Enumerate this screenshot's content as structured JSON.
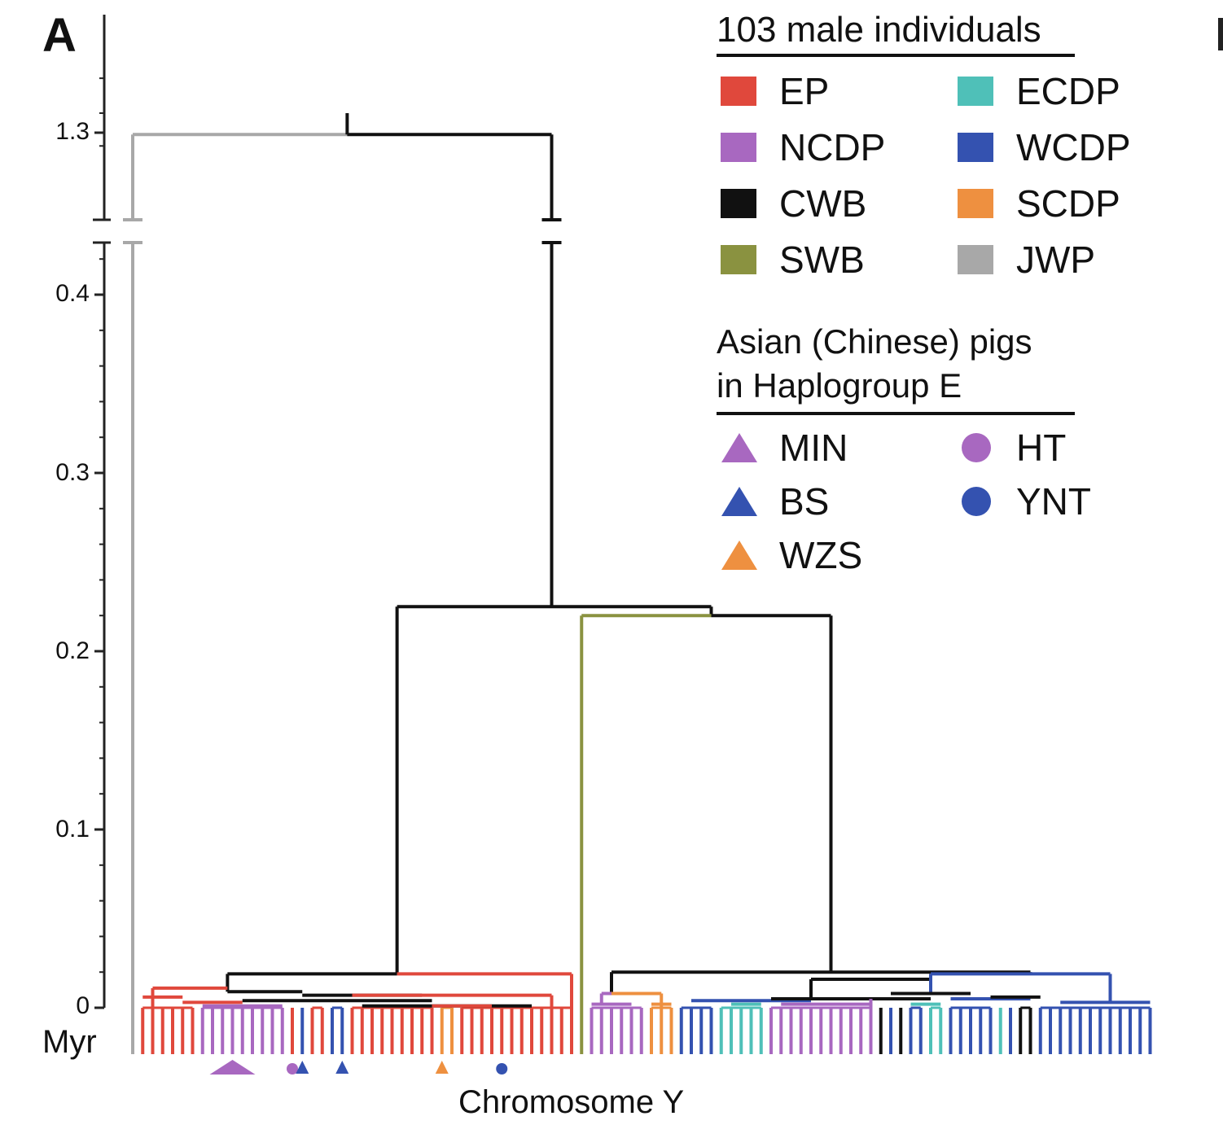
{
  "panel_label": "A",
  "chart_data": {
    "type": "dendrogram",
    "xlabel": "Chromosome Y",
    "ylabel": "Myr",
    "y_axis": {
      "ticks": [
        "0",
        "0.1",
        "0.2",
        "0.3",
        "0.4",
        "1.3"
      ],
      "broken_between": [
        0.45,
        1.25
      ],
      "ylim": [
        0,
        1.35
      ]
    },
    "legend_title": "103 male individuals",
    "groups": [
      {
        "name": "EP",
        "color": "#e0483c"
      },
      {
        "name": "ECDP",
        "color": "#4fc0b8"
      },
      {
        "name": "NCDP",
        "color": "#a868c0"
      },
      {
        "name": "WCDP",
        "color": "#3452b0"
      },
      {
        "name": "CWB",
        "color": "#111111"
      },
      {
        "name": "SCDP",
        "color": "#ee9040"
      },
      {
        "name": "SWB",
        "color": "#8a9240"
      },
      {
        "name": "JWP",
        "color": "#a8a8a8"
      }
    ],
    "haplogroup_title": [
      "Asian (Chinese) pigs",
      "in Haplogroup E"
    ],
    "haplogroup_markers": [
      {
        "name": "MIN",
        "shape": "triangle",
        "color": "#a868c0"
      },
      {
        "name": "HT",
        "shape": "circle",
        "color": "#a868c0"
      },
      {
        "name": "BS",
        "shape": "triangle",
        "color": "#3452b0"
      },
      {
        "name": "YNT",
        "shape": "circle",
        "color": "#3452b0"
      },
      {
        "name": "WZS",
        "shape": "triangle",
        "color": "#ee9040"
      }
    ],
    "leaf_groups": [
      "JWP",
      "EP",
      "EP",
      "EP",
      "EP",
      "EP",
      "EP",
      "NCDP",
      "NCDP",
      "NCDP",
      "NCDP",
      "NCDP",
      "NCDP",
      "NCDP",
      "NCDP",
      "NCDP",
      "EP",
      "WCDP",
      "EP",
      "EP",
      "WCDP",
      "WCDP",
      "EP",
      "EP",
      "EP",
      "EP",
      "EP",
      "EP",
      "EP",
      "EP",
      "EP",
      "SCDP",
      "SCDP",
      "EP",
      "EP",
      "EP",
      "EP",
      "EP",
      "EP",
      "EP",
      "EP",
      "EP",
      "EP",
      "EP",
      "EP",
      "SWB",
      "NCDP",
      "NCDP",
      "NCDP",
      "NCDP",
      "NCDP",
      "NCDP",
      "SCDP",
      "SCDP",
      "SCDP",
      "WCDP",
      "WCDP",
      "WCDP",
      "WCDP",
      "ECDP",
      "ECDP",
      "ECDP",
      "ECDP",
      "ECDP",
      "NCDP",
      "NCDP",
      "NCDP",
      "NCDP",
      "NCDP",
      "NCDP",
      "NCDP",
      "NCDP",
      "NCDP",
      "NCDP",
      "NCDP",
      "CWB",
      "WCDP",
      "CWB",
      "WCDP",
      "WCDP",
      "ECDP",
      "ECDP",
      "WCDP",
      "WCDP",
      "WCDP",
      "WCDP",
      "WCDP",
      "ECDP",
      "WCDP",
      "CWB",
      "CWB",
      "WCDP",
      "WCDP",
      "WCDP",
      "WCDP",
      "WCDP",
      "WCDP",
      "WCDP",
      "WCDP",
      "WCDP",
      "WCDP",
      "WCDP",
      "WCDP"
    ],
    "marker_positions": [
      {
        "marker": "MIN",
        "leaf": 10
      },
      {
        "marker": "HT",
        "leaf": 16
      },
      {
        "marker": "BS",
        "leaf": 17
      },
      {
        "marker": "BS",
        "leaf": 21
      },
      {
        "marker": "WZS",
        "leaf": 31
      },
      {
        "marker": "YNT",
        "leaf": 37
      }
    ],
    "branches": [
      {
        "type": "h",
        "color": "JWP",
        "x0": 0,
        "x1": 21.5,
        "y": 1.33
      },
      {
        "type": "h",
        "color": "CWB",
        "x0": 21.5,
        "x1": 42,
        "y": 1.33
      },
      {
        "type": "v",
        "color": "CWB",
        "x": 21.5,
        "y0": 1.33,
        "y1": 1.35
      },
      {
        "type": "v",
        "color": "JWP",
        "x": 0,
        "y0": 0,
        "y1": 1.33,
        "broken": true
      },
      {
        "type": "v",
        "color": "CWB",
        "x": 42,
        "y0": 0.225,
        "y1": 1.33,
        "broken": true
      },
      {
        "type": "h",
        "color": "CWB",
        "x0": 26.5,
        "x1": 58,
        "y": 0.225
      },
      {
        "type": "v",
        "color": "CWB",
        "x": 26.5,
        "y0": 0.019,
        "y1": 0.225
      },
      {
        "type": "v",
        "color": "CWB",
        "x": 58,
        "y0": 0.22,
        "y1": 0.225
      },
      {
        "type": "h",
        "color": "SWB",
        "x0": 45,
        "x1": 58,
        "y": 0.22
      },
      {
        "type": "h",
        "color": "CWB",
        "x0": 58,
        "x1": 70,
        "y": 0.22
      },
      {
        "type": "v",
        "color": "SWB",
        "x": 45,
        "y0": 0,
        "y1": 0.22
      },
      {
        "type": "v",
        "color": "CWB",
        "x": 70,
        "y0": 0.02,
        "y1": 0.22
      },
      {
        "type": "h",
        "color": "CWB",
        "x0": 9.5,
        "x1": 26.5,
        "y": 0.019
      },
      {
        "type": "h",
        "color": "EP",
        "x0": 26.5,
        "x1": 44,
        "y": 0.019
      },
      {
        "type": "v",
        "color": "CWB",
        "x": 9.5,
        "y0": 0.009,
        "y1": 0.019
      },
      {
        "type": "v",
        "color": "EP",
        "x": 44,
        "y0": 0,
        "y1": 0.019
      },
      {
        "type": "h",
        "color": "EP",
        "x0": 2,
        "x1": 9.5,
        "y": 0.011
      },
      {
        "type": "h",
        "color": "CWB",
        "x0": 9.5,
        "x1": 17,
        "y": 0.009
      },
      {
        "type": "h",
        "color": "CWB",
        "x0": 17,
        "x1": 29,
        "y": 0.007
      },
      {
        "type": "h",
        "color": "EP",
        "x0": 22,
        "x1": 42,
        "y": 0.007
      },
      {
        "type": "v",
        "color": "EP",
        "x": 2,
        "y0": 0,
        "y1": 0.011
      },
      {
        "type": "v",
        "color": "EP",
        "x": 42,
        "y0": 0,
        "y1": 0.007
      },
      {
        "type": "h",
        "color": "EP",
        "x0": 1,
        "x1": 5,
        "y": 0.006
      },
      {
        "type": "h",
        "color": "EP",
        "x0": 5,
        "x1": 11,
        "y": 0.003
      },
      {
        "type": "h",
        "color": "CWB",
        "x0": 11,
        "x1": 30,
        "y": 0.004
      },
      {
        "type": "h",
        "color": "CWB",
        "x0": 23,
        "x1": 40,
        "y": 0.001
      },
      {
        "type": "h",
        "color": "NCDP",
        "x0": 7,
        "x1": 15,
        "y": 0.001
      },
      {
        "type": "h",
        "color": "EP",
        "x0": 30,
        "x1": 36,
        "y": 0.001
      },
      {
        "type": "h",
        "color": "CWB",
        "x0": 48,
        "x1": 70,
        "y": 0.02
      },
      {
        "type": "h",
        "color": "CWB",
        "x0": 70,
        "x1": 90,
        "y": 0.02
      },
      {
        "type": "v",
        "color": "CWB",
        "x": 48,
        "y0": 0.008,
        "y1": 0.02
      },
      {
        "type": "v",
        "color": "CWB",
        "x": 90,
        "y0": 0.019,
        "y1": 0.02
      },
      {
        "type": "h",
        "color": "NCDP",
        "x0": 47,
        "x1": 48,
        "y": 0.008
      },
      {
        "type": "h",
        "color": "SCDP",
        "x0": 48,
        "x1": 53,
        "y": 0.008
      },
      {
        "type": "v",
        "color": "NCDP",
        "x": 47,
        "y0": 0.002,
        "y1": 0.008
      },
      {
        "type": "v",
        "color": "SCDP",
        "x": 53,
        "y0": 0,
        "y1": 0.008
      },
      {
        "type": "h",
        "color": "NCDP",
        "x0": 46,
        "x1": 50,
        "y": 0.002
      },
      {
        "type": "h",
        "color": "SCDP",
        "x0": 52,
        "x1": 54,
        "y": 0.002
      },
      {
        "type": "h",
        "color": "CWB",
        "x0": 68,
        "x1": 80,
        "y": 0.016
      },
      {
        "type": "h",
        "color": "WCDP",
        "x0": 80,
        "x1": 90,
        "y": 0.019
      },
      {
        "type": "v",
        "color": "CWB",
        "x": 68,
        "y0": 0.005,
        "y1": 0.016
      },
      {
        "type": "h",
        "color": "WCDP",
        "x0": 90,
        "x1": 98,
        "y": 0.019
      },
      {
        "type": "v",
        "color": "WCDP",
        "x": 80,
        "y0": 0.008,
        "y1": 0.019
      },
      {
        "type": "v",
        "color": "WCDP",
        "x": 98,
        "y0": 0.003,
        "y1": 0.019
      },
      {
        "type": "h",
        "color": "WCDP",
        "x0": 56,
        "x1": 68,
        "y": 0.004
      },
      {
        "type": "h",
        "color": "CWB",
        "x0": 64,
        "x1": 80,
        "y": 0.005
      },
      {
        "type": "h",
        "color": "ECDP",
        "x0": 60,
        "x1": 63,
        "y": 0.002
      },
      {
        "type": "h",
        "color": "NCDP",
        "x0": 65,
        "x1": 74,
        "y": 0.002
      },
      {
        "type": "v",
        "color": "NCDP",
        "x": 74,
        "y0": 0,
        "y1": 0.005
      },
      {
        "type": "h",
        "color": "CWB",
        "x0": 76,
        "x1": 84,
        "y": 0.008
      },
      {
        "type": "h",
        "color": "WCDP",
        "x0": 82,
        "x1": 90,
        "y": 0.005
      },
      {
        "type": "h",
        "color": "ECDP",
        "x0": 78,
        "x1": 81,
        "y": 0.002
      },
      {
        "type": "h",
        "color": "CWB",
        "x0": 86,
        "x1": 91,
        "y": 0.006
      },
      {
        "type": "h",
        "color": "WCDP",
        "x0": 93,
        "x1": 102,
        "y": 0.003
      }
    ]
  }
}
